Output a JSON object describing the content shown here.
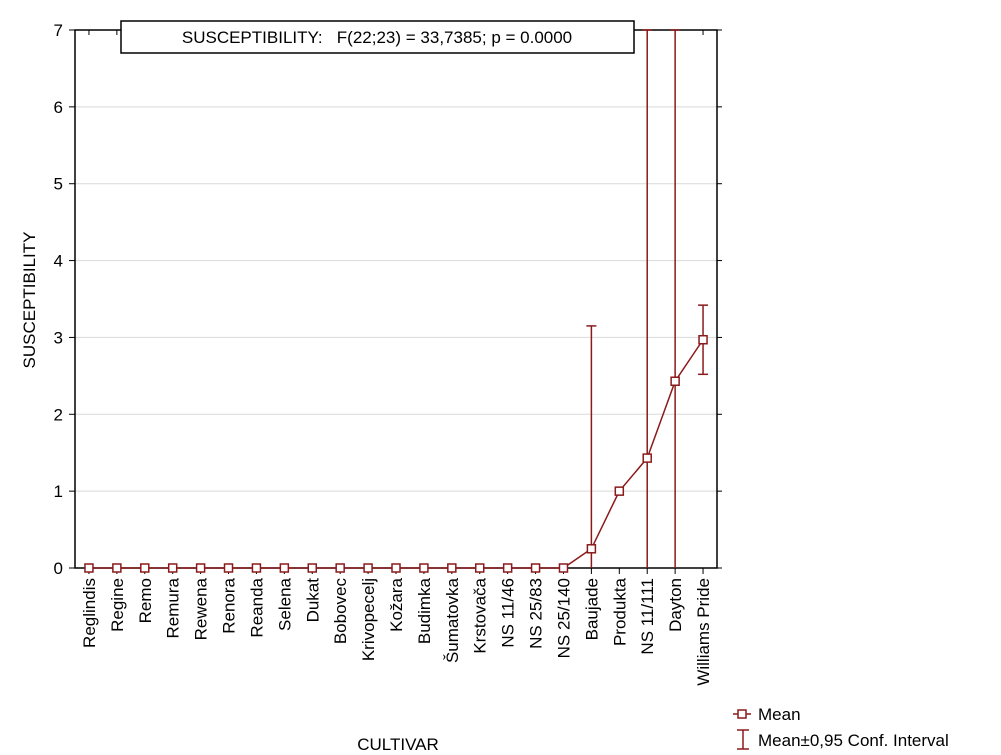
{
  "chart_data": {
    "type": "line",
    "title": "SUSCEPTIBILITY:   F(22;23) = 33,7385; p = 0.0000",
    "xlabel": "CULTIVAR",
    "ylabel": "SUSCEPTIBILITY",
    "ylim": [
      0,
      7
    ],
    "yticks": [
      0,
      1,
      2,
      3,
      4,
      5,
      6,
      7
    ],
    "grid": true,
    "legend_position": "bottom-right",
    "series_color": "#8b1a1a",
    "categories": [
      "Reglindis",
      "Regine",
      "Remo",
      "Remura",
      "Rewena",
      "Renora",
      "Reanda",
      "Selena",
      "Dukat",
      "Bobovec",
      "Krivopecelj",
      "Kožara",
      "Budimka",
      "Šumatovka",
      "Krstovača",
      "NS 11/46",
      "NS 25/83",
      "NS 25/140",
      "Baujade",
      "Produkta",
      "NS 11/111",
      "Dayton",
      "Williams Pride"
    ],
    "series": [
      {
        "name": "Mean",
        "values": [
          0,
          0,
          0,
          0,
          0,
          0,
          0,
          0,
          0,
          0,
          0,
          0,
          0,
          0,
          0,
          0,
          0,
          0,
          0.25,
          1.0,
          1.43,
          2.43,
          2.97
        ]
      },
      {
        "name": "Mean±0,95 Conf. Interval",
        "lower": [
          0,
          0,
          0,
          0,
          0,
          0,
          0,
          0,
          0,
          0,
          0,
          0,
          0,
          0,
          0,
          0,
          0,
          0,
          0,
          1.0,
          0,
          0,
          2.52
        ],
        "upper": [
          0,
          0,
          0,
          0,
          0,
          0,
          0,
          0,
          0,
          0,
          0,
          0,
          0,
          0,
          0,
          0,
          0,
          0,
          3.15,
          1.0,
          7,
          7,
          3.42
        ]
      }
    ]
  }
}
